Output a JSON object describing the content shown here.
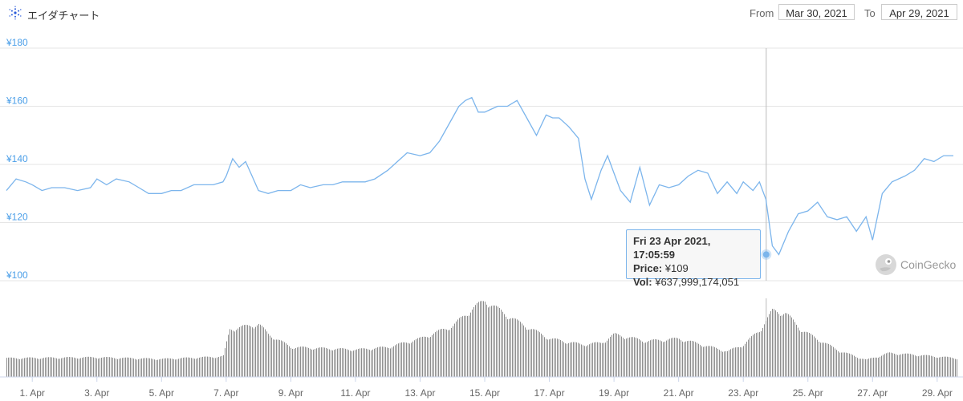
{
  "header": {
    "title": "エイダチャート",
    "from_label": "From",
    "from_value": "Mar 30, 2021",
    "to_label": "To",
    "to_value": "Apr 29, 2021"
  },
  "tooltip": {
    "date": "Fri 23 Apr 2021, 17:05:59",
    "price_label": "Price:",
    "price_value": "¥109",
    "vol_label": "Vol:",
    "vol_value": "¥637,999,174,051"
  },
  "credit": {
    "text": "CoinGecko"
  },
  "colors": {
    "price_line": "#7cb5ec",
    "volume_bar": "#8c8c8c",
    "crosshair": "#bbbbbb",
    "ytick": "#4a9ee8"
  },
  "chart_data": {
    "type": "line",
    "title": "",
    "xlabel": "",
    "ylabel": "",
    "ylim": [
      100,
      180
    ],
    "yticks": [
      "¥180",
      "¥160",
      "¥140",
      "¥120",
      "¥100"
    ],
    "ytick_values": [
      180,
      160,
      140,
      120,
      100
    ],
    "xticks": [
      "1. Apr",
      "3. Apr",
      "5. Apr",
      "7. Apr",
      "9. Apr",
      "11. Apr",
      "13. Apr",
      "15. Apr",
      "17. Apr",
      "19. Apr",
      "21. Apr",
      "23. Apr",
      "25. Apr",
      "27. Apr",
      "29. Apr"
    ],
    "xtick_days": [
      1,
      3,
      5,
      7,
      9,
      11,
      13,
      15,
      17,
      19,
      21,
      23,
      25,
      27,
      29
    ],
    "xlim_days": [
      0.2,
      29.6
    ],
    "grid": true,
    "series": [
      {
        "role": "price",
        "x_days": [
          0.2,
          0.5,
          0.8,
          1.0,
          1.3,
          1.6,
          2.0,
          2.4,
          2.8,
          3.0,
          3.3,
          3.6,
          4.0,
          4.3,
          4.6,
          5.0,
          5.3,
          5.6,
          6.0,
          6.3,
          6.6,
          6.9,
          7.0,
          7.2,
          7.4,
          7.6,
          7.8,
          8.0,
          8.3,
          8.6,
          9.0,
          9.3,
          9.6,
          10.0,
          10.3,
          10.6,
          11.0,
          11.3,
          11.6,
          12.0,
          12.3,
          12.6,
          13.0,
          13.3,
          13.6,
          14.0,
          14.2,
          14.4,
          14.6,
          14.8,
          15.0,
          15.2,
          15.4,
          15.7,
          16.0,
          16.3,
          16.6,
          16.9,
          17.1,
          17.3,
          17.6,
          17.9,
          18.1,
          18.3,
          18.6,
          18.8,
          19.0,
          19.2,
          19.5,
          19.8,
          20.1,
          20.4,
          20.7,
          21.0,
          21.3,
          21.6,
          21.9,
          22.2,
          22.5,
          22.8,
          23.0,
          23.3,
          23.5,
          23.7,
          23.9,
          24.1,
          24.4,
          24.7,
          25.0,
          25.3,
          25.6,
          25.9,
          26.2,
          26.5,
          26.8,
          27.0,
          27.3,
          27.6,
          28.0,
          28.3,
          28.6,
          28.9,
          29.2,
          29.5
        ],
        "values": [
          131,
          135,
          134,
          133,
          131,
          132,
          132,
          131,
          132,
          135,
          133,
          135,
          134,
          132,
          130,
          130,
          131,
          131,
          133,
          133,
          133,
          134,
          136,
          142,
          139,
          141,
          136,
          131,
          130,
          131,
          131,
          133,
          132,
          133,
          133,
          134,
          134,
          134,
          135,
          138,
          141,
          144,
          143,
          144,
          148,
          156,
          160,
          162,
          163,
          158,
          158,
          159,
          160,
          160,
          162,
          156,
          150,
          157,
          156,
          156,
          153,
          149,
          135,
          128,
          138,
          143,
          137,
          131,
          127,
          139,
          126,
          133,
          132,
          133,
          136,
          138,
          137,
          130,
          134,
          130,
          134,
          131,
          134,
          128,
          112,
          109,
          117,
          123,
          124,
          127,
          122,
          121,
          122,
          117,
          122,
          114,
          130,
          134,
          136,
          138,
          142,
          141,
          143,
          143
        ]
      },
      {
        "role": "volume",
        "x_days": [
          0.2,
          3.0,
          5.0,
          6.9,
          7.1,
          8.0,
          8.3,
          9.0,
          11.0,
          12.0,
          13.0,
          14.0,
          14.6,
          15.0,
          15.3,
          16.0,
          17.0,
          18.0,
          18.6,
          19.0,
          20.0,
          21.0,
          22.0,
          22.5,
          23.0,
          23.5,
          23.9,
          24.3,
          24.8,
          25.5,
          26.0,
          26.8,
          27.5,
          28.3,
          29.6
        ],
        "values": [
          0.22,
          0.23,
          0.21,
          0.24,
          0.56,
          0.62,
          0.5,
          0.35,
          0.32,
          0.35,
          0.45,
          0.6,
          0.8,
          0.9,
          0.82,
          0.65,
          0.45,
          0.38,
          0.4,
          0.5,
          0.42,
          0.45,
          0.35,
          0.3,
          0.38,
          0.55,
          0.78,
          0.75,
          0.55,
          0.4,
          0.3,
          0.2,
          0.28,
          0.26,
          0.22
        ]
      }
    ]
  }
}
